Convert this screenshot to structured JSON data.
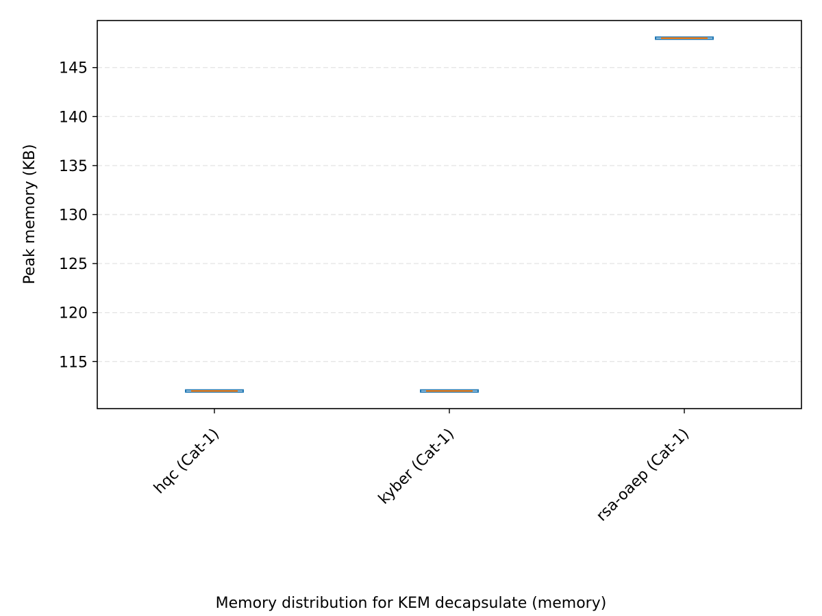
{
  "chart_data": {
    "type": "box",
    "categories": [
      "hqc (Cat-1)",
      "kyber (Cat-1)",
      "rsa-oaep (Cat-1)"
    ],
    "series": [
      {
        "values": [
          {
            "min": 112,
            "q1": 112,
            "median": 112,
            "q3": 112,
            "max": 112
          },
          {
            "min": 112,
            "q1": 112,
            "median": 112,
            "q3": 112,
            "max": 112
          },
          {
            "min": 148,
            "q1": 148,
            "median": 148,
            "q3": 148,
            "max": 148
          }
        ]
      }
    ],
    "title": "",
    "xlabel": "Memory distribution for KEM decapsulate (memory)",
    "ylabel": "Peak memory (KB)",
    "ylim": [
      110.2,
      149.8
    ],
    "yticks": [
      115,
      120,
      125,
      130,
      135,
      140,
      145
    ],
    "grid": {
      "y": true,
      "style": "dashed"
    },
    "colors": {
      "box": "#1f77b4",
      "median": "#ff7f0e",
      "grid": "#e5e5e5",
      "axis": "#000000"
    },
    "xtick_rotation": -45
  }
}
